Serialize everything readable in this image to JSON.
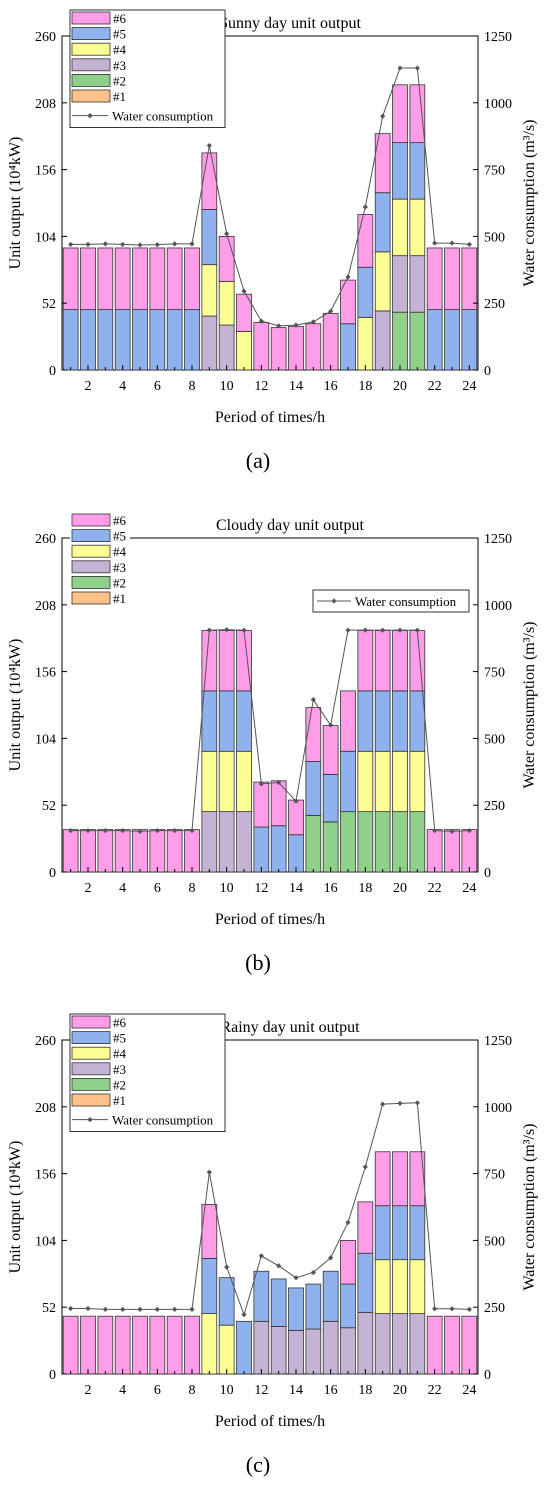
{
  "legend_labels": [
    "#6",
    "#5",
    "#4",
    "#3",
    "#2",
    "#1"
  ],
  "water_label": "Water consumption",
  "colors": {
    "#1": "#ffc08a",
    "#2": "#8fd18b",
    "#3": "#c5b3d6",
    "#4": "#fdfd96",
    "#5": "#8fb2ee",
    "#6": "#ff9de8",
    "line": "#555555",
    "marker": "#555555"
  },
  "chart_data": [
    {
      "type": "bar",
      "caption": "(a)",
      "title": "Sunny day unit output",
      "xlabel": "Period of times/h",
      "ylabel": "Unit output (10⁴kW)",
      "y2label": "Water consumption (m³/s)",
      "categories": [
        1,
        2,
        3,
        4,
        5,
        6,
        7,
        8,
        9,
        10,
        11,
        12,
        13,
        14,
        15,
        16,
        17,
        18,
        19,
        20,
        21,
        22,
        23,
        24
      ],
      "xticks": [
        2,
        4,
        6,
        8,
        10,
        12,
        14,
        16,
        18,
        20,
        22,
        24
      ],
      "ylim": [
        0,
        260
      ],
      "yticks": [
        0,
        52,
        104,
        156,
        208,
        260
      ],
      "y2lim": [
        0,
        1250
      ],
      "y2ticks": [
        0,
        250,
        500,
        750,
        1000,
        1250
      ],
      "legend_position": "top-left",
      "series": [
        {
          "name": "#1",
          "values": [
            0,
            0,
            0,
            0,
            0,
            0,
            0,
            0,
            0,
            0,
            0,
            0,
            0,
            0,
            0,
            0,
            0,
            0,
            0,
            0,
            0,
            0,
            0,
            0
          ]
        },
        {
          "name": "#2",
          "values": [
            0,
            0,
            0,
            0,
            0,
            0,
            0,
            0,
            0,
            0,
            0,
            0,
            0,
            0,
            0,
            0,
            0,
            0,
            0,
            45,
            45,
            0,
            0,
            0
          ]
        },
        {
          "name": "#3",
          "values": [
            0,
            0,
            0,
            0,
            0,
            0,
            0,
            0,
            42,
            35,
            0,
            0,
            0,
            0,
            0,
            0,
            0,
            0,
            46,
            44,
            44,
            0,
            0,
            0
          ]
        },
        {
          "name": "#4",
          "values": [
            0,
            0,
            0,
            0,
            0,
            0,
            0,
            0,
            40,
            34,
            30,
            0,
            0,
            0,
            0,
            0,
            0,
            41,
            46,
            44,
            44,
            0,
            0,
            0
          ]
        },
        {
          "name": "#5",
          "values": [
            47,
            47,
            47,
            47,
            47,
            47,
            47,
            47,
            43,
            0,
            0,
            0,
            0,
            0,
            0,
            0,
            36,
            39,
            46,
            44,
            44,
            47,
            47,
            47
          ]
        },
        {
          "name": "#6",
          "values": [
            48,
            48,
            48,
            48,
            48,
            48,
            48,
            48,
            44,
            35,
            29,
            37,
            33,
            34,
            36,
            44,
            34,
            41,
            46,
            45,
            45,
            48,
            48,
            48
          ]
        },
        {
          "name": "Water consumption",
          "axis": "right",
          "values": [
            470,
            470,
            472,
            470,
            468,
            469,
            472,
            472,
            840,
            510,
            295,
            183,
            165,
            168,
            180,
            220,
            348,
            610,
            950,
            1130,
            1130,
            475,
            475,
            470
          ]
        }
      ]
    },
    {
      "type": "bar",
      "caption": "(b)",
      "title": "Cloudy day unit output",
      "xlabel": "Period of times/h",
      "ylabel": "Unit output (10⁴kW)",
      "y2label": "Water consumption (m³/s)",
      "categories": [
        1,
        2,
        3,
        4,
        5,
        6,
        7,
        8,
        9,
        10,
        11,
        12,
        13,
        14,
        15,
        16,
        17,
        18,
        19,
        20,
        21,
        22,
        23,
        24
      ],
      "xticks": [
        2,
        4,
        6,
        8,
        10,
        12,
        14,
        16,
        18,
        20,
        22,
        24
      ],
      "ylim": [
        0,
        260
      ],
      "yticks": [
        0,
        52,
        104,
        156,
        208,
        260
      ],
      "y2lim": [
        0,
        1250
      ],
      "y2ticks": [
        0,
        250,
        500,
        750,
        1000,
        1250
      ],
      "legend_position": "top-left",
      "series": [
        {
          "name": "#1",
          "values": [
            0,
            0,
            0,
            0,
            0,
            0,
            0,
            0,
            0,
            0,
            0,
            0,
            0,
            0,
            0,
            0,
            0,
            0,
            0,
            0,
            0,
            0,
            0,
            0
          ]
        },
        {
          "name": "#2",
          "values": [
            0,
            0,
            0,
            0,
            0,
            0,
            0,
            0,
            0,
            0,
            0,
            0,
            0,
            0,
            44,
            39,
            47,
            47,
            47,
            47,
            47,
            0,
            0,
            0
          ]
        },
        {
          "name": "#3",
          "values": [
            0,
            0,
            0,
            0,
            0,
            0,
            0,
            0,
            47,
            47,
            47,
            0,
            0,
            0,
            0,
            0,
            0,
            0,
            0,
            0,
            0,
            0,
            0,
            0
          ]
        },
        {
          "name": "#4",
          "values": [
            0,
            0,
            0,
            0,
            0,
            0,
            0,
            0,
            47,
            47,
            47,
            0,
            0,
            0,
            0,
            0,
            0,
            47,
            47,
            47,
            47,
            0,
            0,
            0
          ]
        },
        {
          "name": "#5",
          "values": [
            0,
            0,
            0,
            0,
            0,
            0,
            0,
            0,
            47,
            47,
            47,
            35,
            36,
            29,
            42,
            37,
            47,
            47,
            47,
            47,
            47,
            0,
            0,
            0
          ]
        },
        {
          "name": "#6",
          "values": [
            33,
            33,
            33,
            33,
            33,
            33,
            33,
            33,
            47,
            47,
            47,
            35,
            35,
            27,
            42,
            38,
            47,
            47,
            47,
            47,
            47,
            33,
            33,
            33
          ]
        },
        {
          "name": "Water consumption",
          "axis": "right",
          "values": [
            155,
            155,
            155,
            155,
            152,
            155,
            155,
            155,
            905,
            907,
            905,
            330,
            335,
            265,
            645,
            550,
            905,
            905,
            905,
            905,
            905,
            155,
            152,
            155
          ]
        }
      ]
    },
    {
      "type": "bar",
      "caption": "(c)",
      "title": "Rainy day unit output",
      "xlabel": "Period of times/h",
      "ylabel": "Unit output (10⁴kW)",
      "y2label": "Water consumption (m³/s)",
      "categories": [
        1,
        2,
        3,
        4,
        5,
        6,
        7,
        8,
        9,
        10,
        11,
        12,
        13,
        14,
        15,
        16,
        17,
        18,
        19,
        20,
        21,
        22,
        23,
        24
      ],
      "xticks": [
        2,
        4,
        6,
        8,
        10,
        12,
        14,
        16,
        18,
        20,
        22,
        24
      ],
      "ylim": [
        0,
        260
      ],
      "yticks": [
        0,
        52,
        104,
        156,
        208,
        260
      ],
      "y2lim": [
        0,
        1250
      ],
      "y2ticks": [
        0,
        250,
        500,
        750,
        1000,
        1250
      ],
      "legend_position": "top-left",
      "series": [
        {
          "name": "#1",
          "values": [
            0,
            0,
            0,
            0,
            0,
            0,
            0,
            0,
            0,
            0,
            0,
            0,
            0,
            0,
            0,
            0,
            0,
            0,
            0,
            0,
            0,
            0,
            0,
            0
          ]
        },
        {
          "name": "#2",
          "values": [
            0,
            0,
            0,
            0,
            0,
            0,
            0,
            0,
            0,
            0,
            0,
            0,
            0,
            0,
            0,
            0,
            0,
            0,
            0,
            0,
            0,
            0,
            0,
            0
          ]
        },
        {
          "name": "#3",
          "values": [
            0,
            0,
            0,
            0,
            0,
            0,
            0,
            0,
            0,
            0,
            0,
            41,
            37,
            34,
            35,
            41,
            36,
            48,
            47,
            47,
            47,
            0,
            0,
            0
          ]
        },
        {
          "name": "#4",
          "values": [
            0,
            0,
            0,
            0,
            0,
            0,
            0,
            0,
            47,
            38,
            0,
            0,
            0,
            0,
            0,
            0,
            0,
            0,
            42,
            42,
            42,
            0,
            0,
            0
          ]
        },
        {
          "name": "#5",
          "values": [
            0,
            0,
            0,
            0,
            0,
            0,
            0,
            0,
            43,
            37,
            41,
            39,
            37,
            33,
            35,
            39,
            34,
            46,
            42,
            42,
            42,
            0,
            0,
            0
          ]
        },
        {
          "name": "#6",
          "values": [
            45,
            45,
            45,
            45,
            45,
            45,
            45,
            45,
            42,
            0,
            0,
            0,
            0,
            0,
            0,
            0,
            34,
            40,
            42,
            42,
            42,
            45,
            45,
            45
          ]
        },
        {
          "name": "Water consumption",
          "axis": "right",
          "values": [
            245,
            245,
            242,
            242,
            242,
            242,
            242,
            242,
            755,
            400,
            222,
            442,
            405,
            360,
            380,
            435,
            567,
            775,
            1010,
            1013,
            1015,
            244,
            244,
            242
          ]
        }
      ]
    }
  ]
}
